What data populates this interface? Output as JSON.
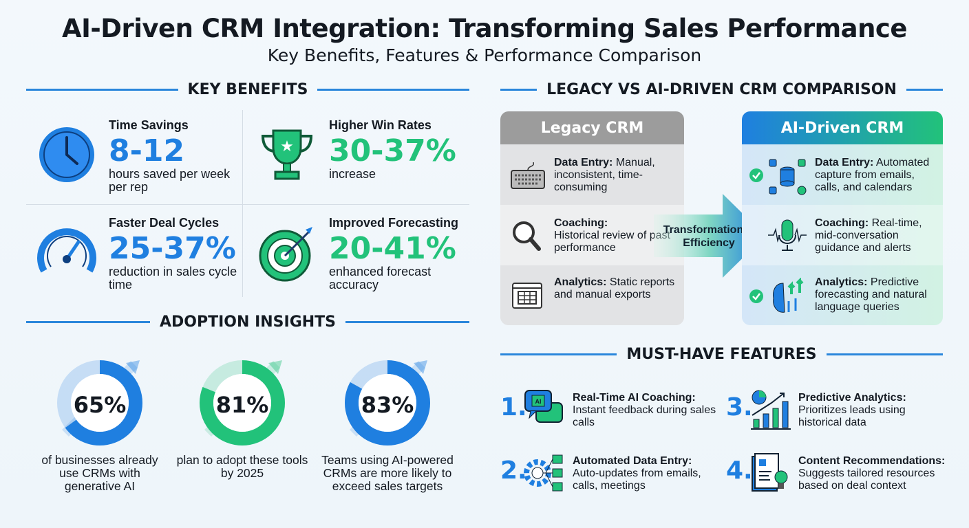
{
  "header": {
    "title": "AI-Driven CRM Integration: Transforming Sales Performance",
    "subtitle": "Key Benefits, Features & Performance Comparison"
  },
  "colors": {
    "blue": "#1f7fe0",
    "green": "#22c27a",
    "legacy_gray": "#9a9a9a"
  },
  "key_benefits": {
    "heading": "KEY BENEFITS",
    "items": [
      {
        "label": "Time Savings",
        "value": "8-12",
        "desc": "hours saved per week per rep",
        "icon": "clock-icon",
        "color": "blue"
      },
      {
        "label": "Higher Win Rates",
        "value": "30-37%",
        "desc": "increase",
        "icon": "trophy-icon",
        "color": "green"
      },
      {
        "label": "Faster Deal Cycles",
        "value": "25-37%",
        "desc": "reduction in sales cycle time",
        "icon": "speedometer-icon",
        "color": "blue"
      },
      {
        "label": "Improved Forecasting",
        "value": "20-41%",
        "desc": "enhanced forecast accuracy",
        "icon": "target-icon",
        "color": "green"
      }
    ]
  },
  "adoption": {
    "heading": "ADOPTION INSIGHTS",
    "items": [
      {
        "percent": 65,
        "label": "65%",
        "desc": "of businesses already use CRMs with generative AI",
        "color": "#1f7fe0"
      },
      {
        "percent": 81,
        "label": "81%",
        "desc": "plan to adopt these tools by 2025",
        "color": "#22c27a"
      },
      {
        "percent": 83,
        "label": "83%",
        "desc": "Teams using AI-powered CRMs are more likely to exceed sales targets",
        "color": "#1f7fe0"
      }
    ]
  },
  "comparison": {
    "heading": "LEGACY VS AI-DRIVEN CRM COMPARISON",
    "arrow_label": "Transformation & Efficiency",
    "legacy": {
      "title": "Legacy CRM",
      "rows": [
        {
          "term": "Data Entry:",
          "text": "Manual, inconsistent, time-consuming",
          "icon": "keyboard-icon"
        },
        {
          "term": "Coaching:",
          "text": "Historical review of past performance",
          "icon": "magnifier-icon"
        },
        {
          "term": "Analytics:",
          "text": "Static reports and manual exports",
          "icon": "spreadsheet-icon"
        }
      ]
    },
    "ai": {
      "title": "AI-Driven CRM",
      "rows": [
        {
          "term": "Data Entry:",
          "text": "Automated capture from emails, calls, and calendars",
          "icon": "database-sync-icon",
          "check": true
        },
        {
          "term": "Coaching:",
          "text": "Real-time, mid-conversation guidance and alerts",
          "icon": "microphone-icon",
          "check": false
        },
        {
          "term": "Analytics:",
          "text": "Predictive forecasting and natural language queries",
          "icon": "brain-growth-icon",
          "check": true
        }
      ]
    }
  },
  "features": {
    "heading": "MUST-HAVE FEATURES",
    "items": [
      {
        "num": "1.",
        "title": "Real-Time AI Coaching:",
        "desc": "Instant feedback during sales calls",
        "icon": "ai-chat-icon"
      },
      {
        "num": "2.",
        "title": "Automated Data Entry:",
        "desc": "Auto-updates from emails, calls, meetings",
        "icon": "gear-automation-icon"
      },
      {
        "num": "3.",
        "title": "Predictive Analytics:",
        "desc": "Prioritizes leads using historical data",
        "icon": "bar-chart-growth-icon"
      },
      {
        "num": "4.",
        "title": "Content Recommendations:",
        "desc": "Suggests tailored resources based on deal context",
        "icon": "document-lightbulb-icon"
      }
    ]
  }
}
